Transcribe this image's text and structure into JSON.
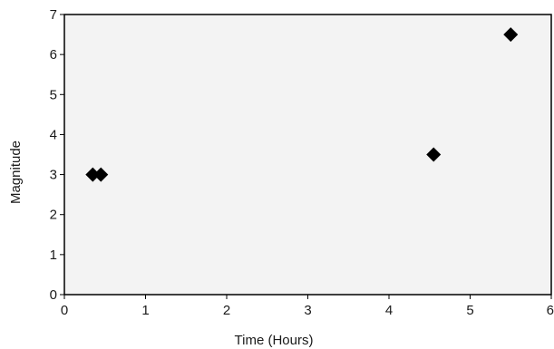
{
  "chart_data": {
    "type": "scatter",
    "title": "",
    "xlabel": "Time (Hours)",
    "ylabel": "Magnitude",
    "xlim": [
      0,
      6
    ],
    "ylim": [
      0,
      7
    ],
    "xticks": [
      "0",
      "1",
      "2",
      "3",
      "4",
      "5",
      "6"
    ],
    "yticks": [
      "0",
      "1",
      "2",
      "3",
      "4",
      "5",
      "6",
      "7"
    ],
    "grid": false,
    "legend": "none",
    "marker": "diamond",
    "marker_color": "#000000",
    "plot_background": "#f3f3f3",
    "series": [
      {
        "points": [
          {
            "x": 0.35,
            "y": 3.0
          },
          {
            "x": 0.45,
            "y": 3.0
          },
          {
            "x": 4.55,
            "y": 3.5
          },
          {
            "x": 5.5,
            "y": 6.5
          }
        ]
      }
    ]
  }
}
